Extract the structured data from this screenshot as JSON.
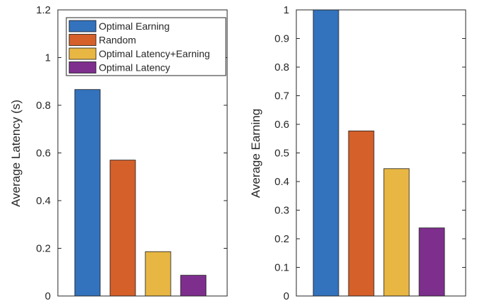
{
  "chart_data": [
    {
      "type": "bar",
      "categories": [
        "Optimal Earning",
        "Random",
        "Optimal Latency+Earning",
        "Optimal Latency"
      ],
      "values": [
        0.866,
        0.57,
        0.186,
        0.087
      ],
      "colors": [
        "#3372BD",
        "#D5602A",
        "#E8B743",
        "#7E2F8E"
      ],
      "xlabel": "",
      "ylabel": "Average Latency (s)",
      "ylim": [
        0,
        1.2
      ],
      "yticks": [
        "0",
        "0.2",
        "0.4",
        "0.6",
        "0.8",
        "1",
        "1.2"
      ],
      "legend": {
        "placement": "top-right",
        "entries": [
          "Optimal Earning",
          "Random",
          "Optimal Latency+Earning",
          "Optimal Latency"
        ]
      },
      "grid": false
    },
    {
      "type": "bar",
      "categories": [
        "Optimal Earning",
        "Random",
        "Optimal Latency+Earning",
        "Optimal Latency"
      ],
      "values": [
        1.0,
        0.577,
        0.445,
        0.238
      ],
      "colors": [
        "#3372BD",
        "#D5602A",
        "#E8B743",
        "#7E2F8E"
      ],
      "xlabel": "",
      "ylabel": "Average Earning",
      "ylim": [
        0,
        1
      ],
      "yticks": [
        "0",
        "0.1",
        "0.2",
        "0.3",
        "0.4",
        "0.5",
        "0.6",
        "0.7",
        "0.8",
        "0.9",
        "1"
      ],
      "grid": false
    }
  ]
}
